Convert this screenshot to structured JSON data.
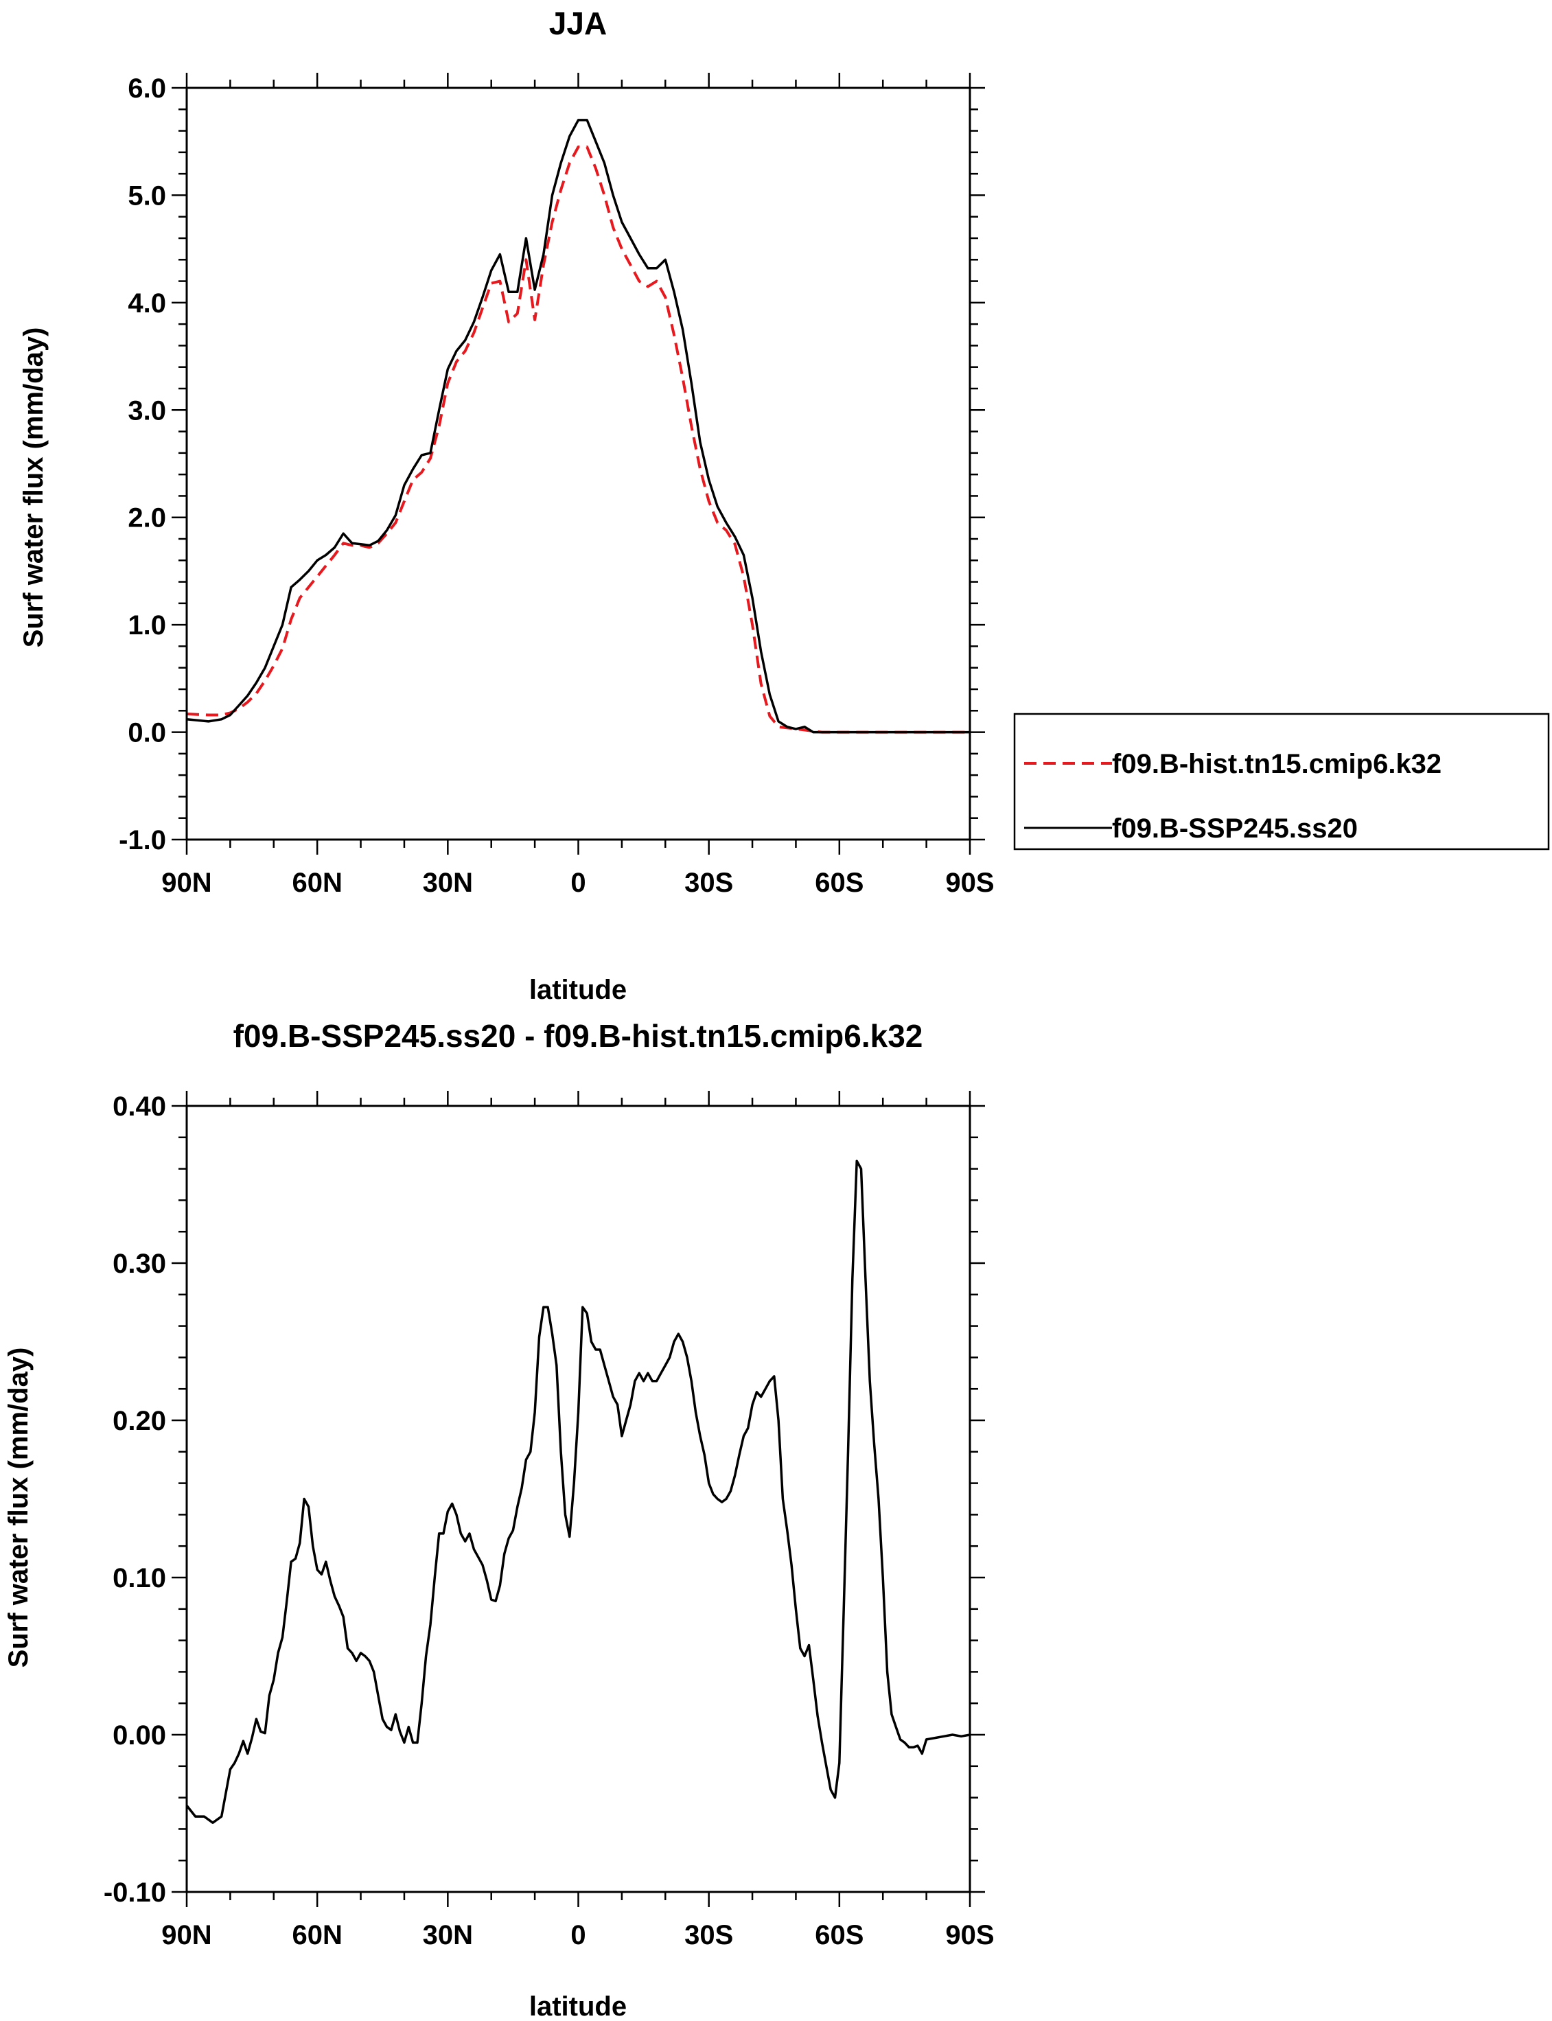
{
  "chart_data": [
    {
      "type": "line",
      "title": "JJA",
      "xlabel": "latitude",
      "ylabel": "Surf water flux (mm/day)",
      "xlim": [
        90,
        -90
      ],
      "ylim": [
        -1.0,
        6.0
      ],
      "x_ticks": [
        {
          "value": 90,
          "label": "90N"
        },
        {
          "value": 60,
          "label": "60N"
        },
        {
          "value": 30,
          "label": "30N"
        },
        {
          "value": 0,
          "label": "0"
        },
        {
          "value": -30,
          "label": "30S"
        },
        {
          "value": -60,
          "label": "60S"
        },
        {
          "value": -90,
          "label": "90S"
        }
      ],
      "y_ticks": [
        "-1.0",
        "0.0",
        "1.0",
        "2.0",
        "3.0",
        "4.0",
        "5.0",
        "6.0"
      ],
      "grid": false,
      "legend_position": "outside-right",
      "series": [
        {
          "name": "f09.B-hist.tn15.cmip6.k32",
          "color": "#e8191e",
          "style": "dashed",
          "x": [
            90,
            85,
            82,
            80,
            78,
            76,
            74,
            72,
            70,
            68,
            66,
            64,
            62,
            60,
            58,
            56,
            54,
            52,
            50,
            48,
            46,
            44,
            42,
            40,
            38,
            36,
            34,
            32,
            30,
            28,
            26,
            24,
            22,
            20,
            18,
            16,
            14,
            12,
            10,
            8,
            6,
            4,
            2,
            0,
            -2,
            -4,
            -6,
            -8,
            -10,
            -12,
            -14,
            -16,
            -18,
            -20,
            -22,
            -24,
            -26,
            -28,
            -30,
            -32,
            -34,
            -36,
            -38,
            -40,
            -42,
            -44,
            -46,
            -48,
            -50,
            -52,
            -54,
            -56,
            -58,
            -60,
            -62,
            -64,
            -66,
            -68,
            -70,
            -72,
            -74,
            -76,
            -78,
            -80,
            -82,
            -84,
            -86,
            -88,
            -90
          ],
          "y": [
            0.17,
            0.16,
            0.16,
            0.18,
            0.22,
            0.28,
            0.36,
            0.48,
            0.62,
            0.78,
            1.05,
            1.25,
            1.35,
            1.45,
            1.55,
            1.65,
            1.76,
            1.74,
            1.74,
            1.72,
            1.76,
            1.85,
            1.95,
            2.15,
            2.35,
            2.42,
            2.55,
            2.85,
            3.25,
            3.45,
            3.55,
            3.72,
            3.95,
            4.18,
            4.2,
            3.82,
            3.9,
            4.4,
            3.84,
            4.35,
            4.75,
            5.05,
            5.3,
            5.45,
            5.45,
            5.25,
            5.0,
            4.7,
            4.5,
            4.35,
            4.2,
            4.15,
            4.2,
            4.05,
            3.7,
            3.3,
            2.85,
            2.45,
            2.15,
            1.95,
            1.88,
            1.75,
            1.45,
            1.0,
            0.45,
            0.15,
            0.05,
            0.04,
            0.03,
            0.02,
            0.01,
            0.0,
            0.0,
            0.0,
            0.0,
            0.0,
            0.0,
            0.0,
            0.0,
            0.0,
            0.0,
            0.0,
            0.0,
            0.0,
            0.0,
            0.0,
            0.0,
            0.0,
            0.0
          ]
        },
        {
          "name": "f09.B-SSP245.ss20",
          "color": "#000000",
          "style": "solid",
          "x": [
            90,
            85,
            82,
            80,
            78,
            76,
            74,
            72,
            70,
            68,
            66,
            64,
            62,
            60,
            58,
            56,
            54,
            52,
            50,
            48,
            46,
            44,
            42,
            40,
            38,
            36,
            34,
            32,
            30,
            28,
            26,
            24,
            22,
            20,
            18,
            16,
            14,
            12,
            10,
            8,
            6,
            4,
            2,
            0,
            -2,
            -4,
            -6,
            -8,
            -10,
            -12,
            -14,
            -16,
            -18,
            -20,
            -22,
            -24,
            -26,
            -28,
            -30,
            -32,
            -34,
            -36,
            -38,
            -40,
            -42,
            -44,
            -46,
            -48,
            -50,
            -52,
            -54,
            -56,
            -58,
            -60,
            -62,
            -64,
            -66,
            -68,
            -70,
            -72,
            -74,
            -76,
            -78,
            -80,
            -82,
            -84,
            -86,
            -88,
            -90
          ],
          "y": [
            0.12,
            0.1,
            0.12,
            0.16,
            0.25,
            0.34,
            0.46,
            0.6,
            0.8,
            1.0,
            1.35,
            1.42,
            1.5,
            1.6,
            1.65,
            1.72,
            1.85,
            1.76,
            1.75,
            1.74,
            1.78,
            1.88,
            2.02,
            2.3,
            2.45,
            2.58,
            2.6,
            3.0,
            3.38,
            3.55,
            3.65,
            3.82,
            4.05,
            4.3,
            4.45,
            4.1,
            4.1,
            4.6,
            4.12,
            4.45,
            5.0,
            5.3,
            5.55,
            5.7,
            5.7,
            5.5,
            5.3,
            5.0,
            4.75,
            4.6,
            4.45,
            4.32,
            4.32,
            4.4,
            4.1,
            3.75,
            3.25,
            2.7,
            2.35,
            2.1,
            1.95,
            1.82,
            1.65,
            1.25,
            0.75,
            0.35,
            0.1,
            0.05,
            0.03,
            0.05,
            0.0,
            0.0,
            0.0,
            0.0,
            0.0,
            0.0,
            0.0,
            0.0,
            0.0,
            0.0,
            0.0,
            0.0,
            0.0,
            0.0,
            0.0,
            0.0,
            0.0,
            0.0,
            0.0
          ]
        }
      ]
    },
    {
      "type": "line",
      "title": "f09.B-SSP245.ss20 - f09.B-hist.tn15.cmip6.k32",
      "xlabel": "latitude",
      "ylabel": "Surf water flux (mm/day)",
      "xlim": [
        90,
        -90
      ],
      "ylim": [
        -0.1,
        0.4
      ],
      "x_ticks": [
        {
          "value": 90,
          "label": "90N"
        },
        {
          "value": 60,
          "label": "60N"
        },
        {
          "value": 30,
          "label": "30N"
        },
        {
          "value": 0,
          "label": "0"
        },
        {
          "value": -30,
          "label": "30S"
        },
        {
          "value": -60,
          "label": "60S"
        },
        {
          "value": -90,
          "label": "90S"
        }
      ],
      "y_ticks": [
        "-0.10",
        "0.00",
        "0.10",
        "0.20",
        "0.30",
        "0.40"
      ],
      "grid": false,
      "series": [
        {
          "color": "#000000",
          "style": "solid",
          "x": [
            90,
            88,
            86,
            84,
            82,
            80,
            79,
            78,
            77,
            76,
            75,
            74,
            73,
            72,
            71,
            70,
            69,
            68,
            67,
            66,
            65,
            64,
            63,
            62,
            61,
            60,
            59,
            58,
            57,
            56,
            55,
            54,
            53,
            52,
            51,
            50,
            49,
            48,
            47,
            46,
            45,
            44,
            43,
            42,
            41,
            40,
            39,
            38,
            37,
            36,
            35,
            34,
            33,
            32,
            31,
            30,
            29,
            28,
            27,
            26,
            25,
            24,
            23,
            22,
            21,
            20,
            19,
            18,
            17,
            16,
            15,
            14,
            13,
            12,
            11,
            10,
            9,
            8,
            7,
            6,
            5,
            4,
            3,
            2,
            1,
            0,
            -1,
            -2,
            -3,
            -4,
            -5,
            -6,
            -7,
            -8,
            -9,
            -10,
            -11,
            -12,
            -13,
            -14,
            -15,
            -16,
            -17,
            -18,
            -19,
            -20,
            -21,
            -22,
            -23,
            -24,
            -25,
            -26,
            -27,
            -28,
            -29,
            -30,
            -31,
            -32,
            -33,
            -34,
            -35,
            -36,
            -37,
            -38,
            -39,
            -40,
            -41,
            -42,
            -43,
            -44,
            -45,
            -46,
            -47,
            -48,
            -49,
            -50,
            -51,
            -52,
            -53,
            -54,
            -55,
            -56,
            -57,
            -58,
            -59,
            -60,
            -61,
            -62,
            -63,
            -64,
            -65,
            -66,
            -67,
            -68,
            -69,
            -70,
            -71,
            -72,
            -73,
            -74,
            -75,
            -76,
            -77,
            -78,
            -79,
            -80,
            -82,
            -84,
            -86,
            -88,
            -90
          ],
          "y": [
            -0.045,
            -0.052,
            -0.052,
            -0.056,
            -0.052,
            -0.022,
            -0.018,
            -0.012,
            -0.004,
            -0.012,
            -0.002,
            0.01,
            0.002,
            0.001,
            0.025,
            0.035,
            0.052,
            0.062,
            0.085,
            0.11,
            0.112,
            0.122,
            0.15,
            0.145,
            0.12,
            0.105,
            0.102,
            0.11,
            0.098,
            0.088,
            0.082,
            0.075,
            0.055,
            0.052,
            0.047,
            0.052,
            0.05,
            0.047,
            0.04,
            0.025,
            0.01,
            0.005,
            0.003,
            0.013,
            0.002,
            -0.005,
            0.005,
            -0.005,
            -0.005,
            0.02,
            0.05,
            0.07,
            0.1,
            0.128,
            0.128,
            0.142,
            0.147,
            0.14,
            0.128,
            0.123,
            0.128,
            0.118,
            0.113,
            0.108,
            0.098,
            0.086,
            0.085,
            0.095,
            0.115,
            0.125,
            0.13,
            0.145,
            0.157,
            0.175,
            0.18,
            0.205,
            0.253,
            0.272,
            0.272,
            0.255,
            0.235,
            0.18,
            0.14,
            0.126,
            0.16,
            0.205,
            0.272,
            0.268,
            0.25,
            0.245,
            0.245,
            0.235,
            0.225,
            0.215,
            0.21,
            0.19,
            0.2,
            0.21,
            0.225,
            0.23,
            0.225,
            0.23,
            0.225,
            0.225,
            0.23,
            0.235,
            0.24,
            0.25,
            0.255,
            0.25,
            0.24,
            0.225,
            0.205,
            0.19,
            0.178,
            0.16,
            0.153,
            0.15,
            0.148,
            0.15,
            0.155,
            0.165,
            0.178,
            0.19,
            0.195,
            0.21,
            0.218,
            0.215,
            0.22,
            0.225,
            0.228,
            0.2,
            0.15,
            0.13,
            0.108,
            0.08,
            0.055,
            0.05,
            0.057,
            0.035,
            0.012,
            -0.005,
            -0.02,
            -0.035,
            -0.04,
            -0.018,
            0.08,
            0.18,
            0.29,
            0.365,
            0.36,
            0.29,
            0.225,
            0.185,
            0.15,
            0.1,
            0.04,
            0.013,
            0.005,
            -0.003,
            -0.005,
            -0.008,
            -0.008,
            -0.007,
            -0.012,
            -0.003,
            -0.002,
            -0.001,
            0.0,
            -0.001,
            0.0
          ]
        }
      ]
    }
  ],
  "legend": [
    {
      "label": "f09.B-hist.tn15.cmip6.k32",
      "color": "#e8191e",
      "style": "dashed"
    },
    {
      "label": "f09.B-SSP245.ss20",
      "color": "#000000",
      "style": "solid"
    }
  ]
}
